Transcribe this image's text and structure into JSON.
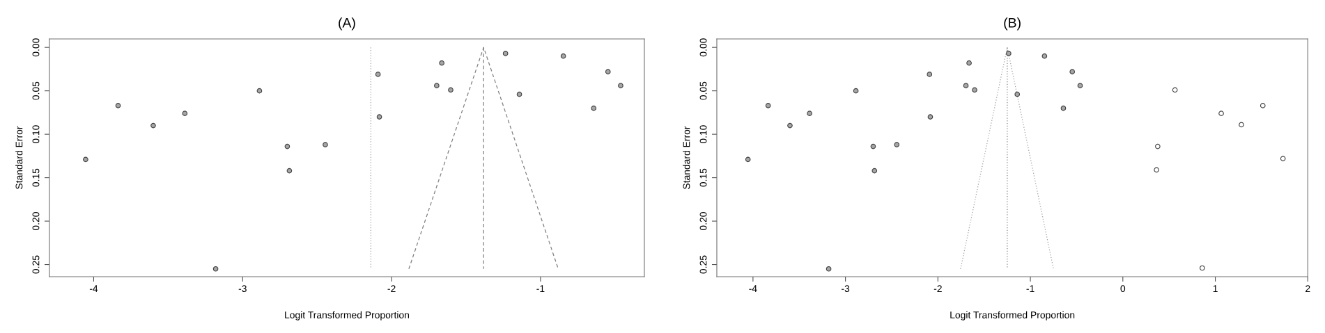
{
  "chart_data": [
    {
      "type": "scatter",
      "title": "(A)",
      "xlabel": "Logit Transformed Proportion",
      "ylabel": "Standard Error",
      "xlim": [
        -4.297,
        -0.303
      ],
      "xticks": [
        -4,
        -3,
        -2,
        -1
      ],
      "ylim": [
        0.264,
        -0.0097
      ],
      "yticks": [
        {
          "value": 0,
          "label": "0.00"
        },
        {
          "value": 0.05,
          "label": "0.05"
        },
        {
          "value": 0.1,
          "label": "0.10"
        },
        {
          "value": 0.15,
          "label": "0.15"
        },
        {
          "value": 0.2,
          "label": "0.20"
        },
        {
          "value": 0.25,
          "label": "0.25"
        }
      ],
      "grid": false,
      "legend": false,
      "series": [
        {
          "type": "scatter",
          "marker": "circle",
          "color": "#a6a6a6",
          "x": [
            -4.054,
            -3.836,
            -3.6,
            -3.388,
            -3.181,
            -2.887,
            -2.7,
            -2.686,
            -2.445,
            -2.091,
            -2.082,
            -1.697,
            -1.663,
            -1.603,
            -1.235,
            -1.142,
            -0.847,
            -0.643,
            -0.547,
            -0.462
          ],
          "values": [
            0.129,
            0.067,
            0.09,
            0.076,
            0.255,
            0.05,
            0.114,
            0.142,
            0.112,
            0.031,
            0.08,
            0.044,
            0.018,
            0.049,
            0.007,
            0.054,
            0.01,
            0.07,
            0.028,
            0.044
          ]
        },
        {
          "type": "line",
          "color": "#808080",
          "line_style": "dashed",
          "x": [
            -1.884,
            -1.382,
            -0.881
          ],
          "values": [
            0.255,
            0,
            0.255
          ]
        },
        {
          "type": "line",
          "color": "#808080",
          "line_style": "dashed",
          "x": [
            -1.382,
            -1.382
          ],
          "values": [
            0,
            0.255
          ]
        },
        {
          "type": "line",
          "color": "#a0a0a0",
          "line_style": "dotted",
          "x": [
            -2.139,
            -2.139
          ],
          "values": [
            0,
            0.255
          ]
        }
      ]
    },
    {
      "type": "scatter",
      "title": "(B)",
      "xlabel": "Logit Transformed Proportion",
      "ylabel": "Standard Error",
      "xlim": [
        -4.391,
        2
      ],
      "xticks": [
        -4,
        -3,
        -2,
        -1,
        0,
        1,
        2
      ],
      "ylim": [
        0.264,
        -0.0097
      ],
      "yticks": [
        {
          "value": 0,
          "label": "0.00"
        },
        {
          "value": 0.05,
          "label": "0.05"
        },
        {
          "value": 0.1,
          "label": "0.10"
        },
        {
          "value": 0.15,
          "label": "0.15"
        },
        {
          "value": 0.2,
          "label": "0.20"
        },
        {
          "value": 0.25,
          "label": "0.25"
        }
      ],
      "grid": false,
      "legend": false,
      "series": [
        {
          "type": "scatter",
          "marker": "circle",
          "color": "#a6a6a6",
          "x": [
            -4.054,
            -3.836,
            -3.6,
            -3.388,
            -3.181,
            -2.887,
            -2.7,
            -2.686,
            -2.445,
            -2.091,
            -2.082,
            -1.697,
            -1.663,
            -1.603,
            -1.235,
            -1.142,
            -0.847,
            -0.643,
            -0.547,
            -0.462
          ],
          "values": [
            0.129,
            0.067,
            0.09,
            0.076,
            0.255,
            0.05,
            0.114,
            0.142,
            0.112,
            0.031,
            0.08,
            0.044,
            0.018,
            0.049,
            0.007,
            0.054,
            0.01,
            0.07,
            0.028,
            0.044
          ]
        },
        {
          "type": "scatter",
          "marker": "circle",
          "color": "#ffffff",
          "x": [
            0.364,
            0.377,
            0.564,
            0.859,
            1.064,
            1.282,
            1.514,
            1.732
          ],
          "values": [
            0.141,
            0.114,
            0.049,
            0.254,
            0.076,
            0.089,
            0.067,
            0.128
          ]
        },
        {
          "type": "line",
          "color": "#a0a0a0",
          "line_style": "dotted",
          "x": [
            -1.755,
            -1.25,
            -0.75
          ],
          "values": [
            0.255,
            0,
            0.255
          ]
        },
        {
          "type": "line",
          "color": "#808080",
          "line_style": "dotted",
          "x": [
            -1.25,
            -1.25
          ],
          "values": [
            0,
            0.255
          ]
        }
      ]
    }
  ]
}
